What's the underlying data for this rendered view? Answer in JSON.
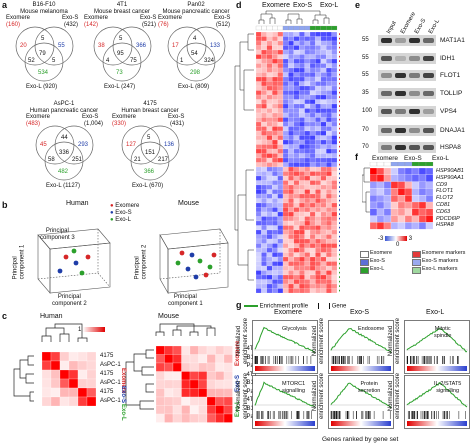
{
  "panel_a": {
    "label": "a",
    "venns": [
      {
        "title": "B16-F10\nMouse melanoma",
        "n_exomere": "(160)",
        "n_exos": "(432)",
        "n_exol": "Exo-L (920)",
        "center": "79",
        "left": "20",
        "right": "55",
        "bottom": "534",
        "small1": "5",
        "small2": "52",
        "small3": "5",
        "label_exomere": "Exomere",
        "label_exos": "Exo-S"
      },
      {
        "title": "4T1\nMouse breast cancer",
        "n_exomere": "(142)",
        "n_exos": "(521)",
        "n_exol": "Exo-L (247)",
        "center": "95",
        "left": "38",
        "right": "366",
        "bottom": "73",
        "small1": "5",
        "small2": "4",
        "small3": "75",
        "label_exomere": "Exomere",
        "label_exos": "Exo-S"
      },
      {
        "title": "Pan02\nMouse pancreatic cancer",
        "n_exomere": "(76)",
        "n_exos": "(512)",
        "n_exol": "Exo-L (809)",
        "center": "54",
        "left": "17",
        "right": "133",
        "bottom": "298",
        "small1": "4",
        "small2": "1",
        "small3": "324",
        "label_exomere": "Exomere",
        "label_exos": "Exo-S"
      },
      {
        "title": "AsPC-1\nHuman pancreatic cancer",
        "n_exomere": "(483)",
        "n_exos": "(1,004)",
        "n_exol": "Exo-L (1127)",
        "center": "336",
        "left": "45",
        "right": "293",
        "bottom": "482",
        "small1": "44",
        "small2": "58",
        "small3": "251",
        "label_exomere": "Exomere",
        "label_exos": "Exo-S"
      },
      {
        "title": "4175\nHuman breast cancer",
        "n_exomere": "(330)",
        "n_exos": "(431)",
        "n_exol": "Exo-L (670)",
        "center": "151",
        "left": "127",
        "right": "136",
        "bottom": "366",
        "small1": "5",
        "small2": "21",
        "small3": "217",
        "label_exomere": "Exomere",
        "label_exos": "Exo-S"
      }
    ]
  },
  "panel_b": {
    "label": "b",
    "human_title": "Human",
    "mouse_title": "Mouse",
    "legend": [
      "Exomere",
      "Exo-S",
      "Exo-L"
    ],
    "legend_colors": [
      "#d62728",
      "#1f3da8",
      "#2ca02c"
    ],
    "axis_labels": [
      "Principal\ncomponent 1",
      "Principal\ncomponent 2",
      "Principal\ncomponent 3"
    ]
  },
  "panel_c": {
    "label": "c",
    "human_title": "Human",
    "mouse_title": "Mouse",
    "human_rows": [
      "4175",
      "AsPC-1",
      "4175",
      "AsPC-1",
      "4175",
      "AsPC-1"
    ],
    "mouse_rows": [
      "4T1",
      "B16-F10",
      "Pan02",
      "4T1",
      "B16-F10",
      "Pan02",
      "4T1",
      "B16-F10",
      "Pan02"
    ],
    "groups": [
      "Exomere",
      "Exo-S",
      "Exo-L"
    ],
    "group_colors": [
      "#d62728",
      "#1f3da8",
      "#2ca02c"
    ],
    "scale_ticks": [
      "1",
      "0"
    ]
  },
  "panel_d": {
    "label": "d",
    "groups": [
      "Exomere",
      "Exo-S",
      "Exo-L"
    ]
  },
  "panel_e": {
    "label": "e",
    "lanes": [
      "Input",
      "Exomere",
      "Exo-S",
      "Exo-L"
    ],
    "markers": [
      {
        "kda": "55",
        "protein": "MAT1A1"
      },
      {
        "kda": "55",
        "protein": "IDH1"
      },
      {
        "kda": "55",
        "protein": "FLOT1"
      },
      {
        "kda": "35",
        "protein": "TOLLIP"
      },
      {
        "kda": "100",
        "protein": "VPS4"
      },
      {
        "kda": "70",
        "protein": "DNAJA1"
      },
      {
        "kda": "70",
        "protein": "HSPA8"
      }
    ]
  },
  "panel_f": {
    "label": "f",
    "groups": [
      "Exomere",
      "Exo-S",
      "Exo-L"
    ],
    "genes": [
      "HSP90AB1",
      "HSP90AA1",
      "CD9",
      "FLOT1",
      "FLOT2",
      "CD81",
      "CD63",
      "PDCD6IP",
      "HSPA8"
    ],
    "scale_ticks": [
      "-3",
      "0",
      "3"
    ],
    "legend": [
      {
        "text": "Exomere",
        "color": "#ffffff"
      },
      {
        "text": "Exomere markers",
        "color": "#e23a3a"
      },
      {
        "text": "Exo-S",
        "color": "#5d6fd6"
      },
      {
        "text": "Exo-S markers",
        "color": "#9aa9ef"
      },
      {
        "text": "Exo-L",
        "color": "#2ca02c"
      },
      {
        "text": "Exo-L markers",
        "color": "#9fd89f"
      }
    ]
  },
  "panel_g": {
    "label": "g",
    "legend_profile": "Enrichment profile",
    "legend_gene": "Gene",
    "columns": [
      "Exomere",
      "Exo-S",
      "Exo-L"
    ],
    "top_terms": [
      "Glycolysis",
      "Endosome",
      "Mitotic\nspindle"
    ],
    "bottom_terms": [
      "MTORC1\nsignalling",
      "Protein\nsecretion",
      "IL-2/STAT5\nsignalling"
    ],
    "ylabel": "Normalized\nenrichment score",
    "xlabel": "Genes ranked by gene set"
  }
}
